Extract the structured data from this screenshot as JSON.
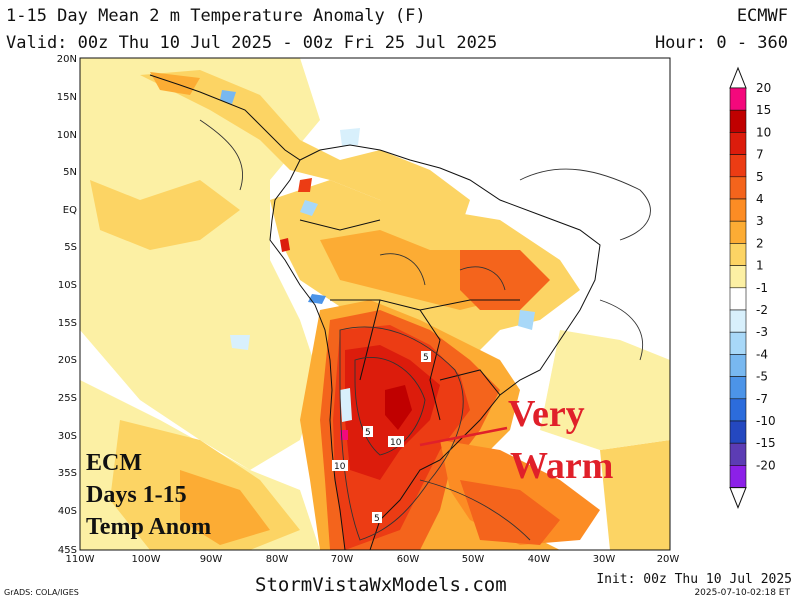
{
  "header": {
    "title": "1-15 Day Mean 2 m Temperature Anomaly (F)",
    "valid": "Valid: 00z Thu 10 Jul 2025 - 00z Fri 25 Jul 2025",
    "model": "ECMWF",
    "hour": "Hour: 0 - 360"
  },
  "map": {
    "lat_labels": [
      "20N",
      "15N",
      "10N",
      "5N",
      "EQ",
      "5S",
      "10S",
      "15S",
      "20S",
      "25S",
      "30S",
      "35S",
      "40S",
      "45S"
    ],
    "lon_labels": [
      "110W",
      "100W",
      "90W",
      "80W",
      "70W",
      "60W",
      "50W",
      "40W",
      "30W",
      "20W"
    ],
    "contour_labels": [
      "5",
      "5",
      "10",
      "10",
      "5"
    ]
  },
  "colorbar": {
    "labels": [
      "20",
      "15",
      "10",
      "7",
      "5",
      "4",
      "3",
      "2",
      "1",
      "-1",
      "-2",
      "-3",
      "-4",
      "-5",
      "-7",
      "-10",
      "-15",
      "-20"
    ],
    "colors": [
      "#f4087c",
      "#c00000",
      "#dc1c0c",
      "#ec3c14",
      "#f4641c",
      "#fc8c24",
      "#fcac34",
      "#fcd464",
      "#fcf0a4",
      "#ffffff",
      "#d8f0fc",
      "#a8d8f8",
      "#78b8f0",
      "#4c94e8",
      "#2c6cdc",
      "#2448c0",
      "#5c3cb4",
      "#8c20e8"
    ]
  },
  "annotations": {
    "left": [
      "ECM",
      "Days 1-15",
      "Temp Anom"
    ],
    "right": [
      "Very",
      "Warm"
    ]
  },
  "footer": {
    "site": "StormVistaWxModels.com",
    "credit": "GrADS: COLA/IGES",
    "init": "Init: 00z Thu 10 Jul 2025",
    "stamp": "2025-07-10-02:18 ET"
  }
}
